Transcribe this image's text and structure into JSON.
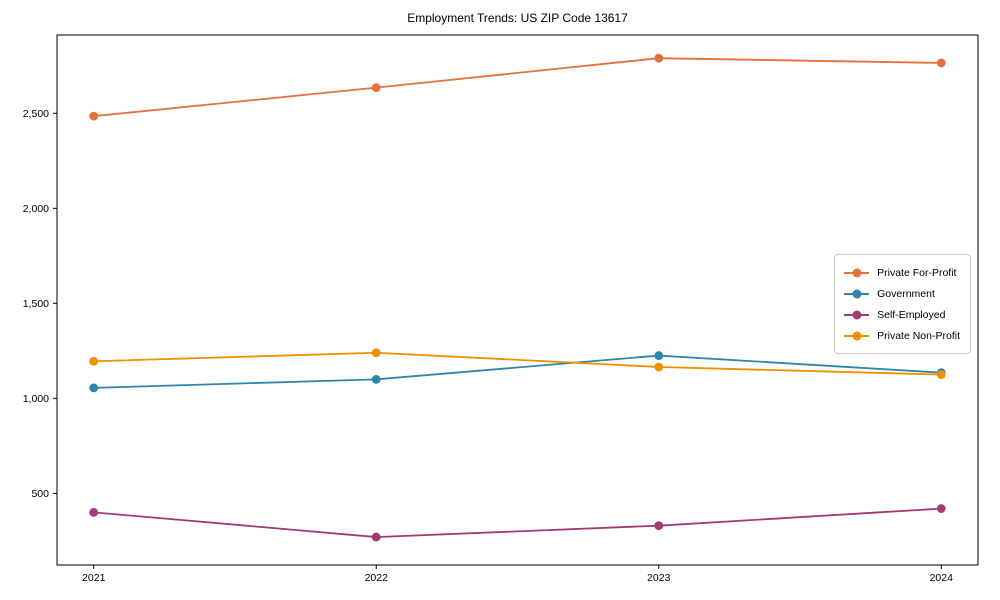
{
  "page": {
    "title": "Employment Trends: US ZIP Code 13617"
  },
  "chart_data": {
    "type": "line",
    "title": "Employment Trends: US ZIP Code 13617",
    "xlabel": "",
    "ylabel": "",
    "x": [
      2021,
      2022,
      2023,
      2024
    ],
    "x_tick_labels": [
      "2021",
      "2022",
      "2023",
      "2024"
    ],
    "y_ticks": [
      500,
      1000,
      1500,
      2000,
      2500
    ],
    "y_tick_labels": [
      "500",
      "1,000",
      "1,500",
      "2,000",
      "2,500"
    ],
    "xlim": [
      2020.87,
      2024.13
    ],
    "ylim": [
      123,
      2912
    ],
    "grid": false,
    "legend_position": "center right",
    "marker": "o",
    "axis_color": "#000000",
    "series": [
      {
        "name": "Private For-Profit",
        "color": "#e4713b",
        "values": [
          2485,
          2635,
          2790,
          2765
        ]
      },
      {
        "name": "Government",
        "color": "#2e86ab",
        "values": [
          1055,
          1100,
          1225,
          1135
        ]
      },
      {
        "name": "Self-Employed",
        "color": "#a23b72",
        "values": [
          400,
          270,
          330,
          420
        ]
      },
      {
        "name": "Private Non-Profit",
        "color": "#f18f01",
        "values": [
          1195,
          1240,
          1165,
          1125
        ]
      }
    ]
  }
}
